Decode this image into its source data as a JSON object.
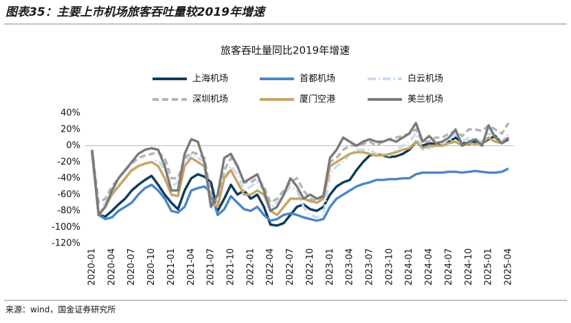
{
  "header": {
    "title": "图表35：主要上市机场旅客吞吐量较2019年增速"
  },
  "chart_data": {
    "type": "line",
    "title": "旅客吞吐量同比2019年增速",
    "categories": [
      "2020-01",
      null,
      null,
      "2020-04",
      null,
      null,
      "2020-07",
      null,
      null,
      "2020-10",
      null,
      null,
      "2021-01",
      null,
      null,
      "2021-04",
      null,
      null,
      "2021-07",
      null,
      null,
      "2021-10",
      null,
      null,
      "2022-01",
      null,
      null,
      "2022-04",
      null,
      null,
      "2022-07",
      null,
      null,
      "2022-10",
      null,
      null,
      "2023-01",
      null,
      null,
      "2023-04",
      null,
      null,
      "2023-07",
      null,
      null,
      "2023-10",
      null,
      null,
      "2024-01",
      null,
      null,
      "2024-04",
      null,
      null,
      "2024-07",
      null,
      null,
      "2024-10",
      null,
      null,
      "2025-01",
      null,
      null,
      "2025-04"
    ],
    "ylim": [
      -120,
      40
    ],
    "yticks": [
      {
        "value": -120,
        "label": "-120%"
      },
      {
        "value": -100,
        "label": "-100%"
      },
      {
        "value": -80,
        "label": "-80%"
      },
      {
        "value": -60,
        "label": "-60%"
      },
      {
        "value": -40,
        "label": "-40%"
      },
      {
        "value": -20,
        "label": "-20%"
      },
      {
        "value": 0,
        "label": "0%"
      },
      {
        "value": 20,
        "label": "20%"
      },
      {
        "value": 40,
        "label": "40%"
      }
    ],
    "series": [
      {
        "name": "上海机场",
        "color": "#0b3d5c",
        "dash": "solid",
        "values": [
          -8,
          -85,
          -87,
          -80,
          -72,
          -65,
          -55,
          -48,
          -42,
          -37,
          -48,
          -60,
          -70,
          -78,
          -55,
          -40,
          -35,
          -38,
          -45,
          -80,
          -65,
          -48,
          -60,
          -55,
          -65,
          -60,
          -75,
          -97,
          -98,
          -95,
          -85,
          -75,
          -72,
          -78,
          -80,
          -75,
          -60,
          -50,
          -45,
          -42,
          -30,
          -20,
          -12,
          -10,
          -12,
          -14,
          -13,
          -10,
          -5,
          5,
          0,
          3,
          2,
          0,
          5,
          10,
          4,
          2,
          5,
          3,
          8,
          12,
          3,
          8
        ]
      },
      {
        "name": "首都机场",
        "color": "#4a86c8",
        "dash": "solid",
        "values": [
          -8,
          -85,
          -90,
          -88,
          -80,
          -75,
          -70,
          -60,
          -52,
          -48,
          -55,
          -65,
          -80,
          -82,
          -75,
          -55,
          -52,
          -50,
          -58,
          -85,
          -78,
          -62,
          -70,
          -78,
          -80,
          -75,
          -85,
          -92,
          -90,
          -85,
          -83,
          -85,
          -88,
          -90,
          -92,
          -90,
          -75,
          -65,
          -60,
          -55,
          -50,
          -47,
          -45,
          -42,
          -42,
          -41,
          -41,
          -40,
          -40,
          -35,
          -33,
          -33,
          -33,
          -33,
          -32,
          -32,
          -33,
          -32,
          -31,
          -32,
          -33,
          -33,
          -32,
          -28
        ]
      },
      {
        "name": "白云机场",
        "color": "#c9dcf0",
        "dash": "dashdot",
        "values": [
          -5,
          -85,
          -70,
          -60,
          -48,
          -40,
          -32,
          -25,
          -22,
          -20,
          -18,
          -30,
          -50,
          -45,
          -20,
          -10,
          -15,
          -20,
          -78,
          -70,
          -40,
          -25,
          -35,
          -55,
          -50,
          -45,
          -55,
          -75,
          -70,
          -60,
          -50,
          -55,
          -75,
          -85,
          -88,
          -85,
          -35,
          -25,
          -20,
          -10,
          -5,
          -5,
          -5,
          -10,
          -10,
          -12,
          -5,
          0,
          5,
          15,
          -5,
          -3,
          0,
          2,
          3,
          15,
          5,
          10,
          8,
          5,
          15,
          12,
          5,
          15
        ]
      },
      {
        "name": "深圳机场",
        "color": "#b4b4b4",
        "dash": "dashed",
        "values": [
          -5,
          -70,
          -65,
          -50,
          -40,
          -30,
          -22,
          -15,
          -12,
          -10,
          -8,
          -15,
          -40,
          -40,
          -15,
          -8,
          -10,
          -15,
          -60,
          -70,
          -30,
          -15,
          -25,
          -45,
          -45,
          -40,
          -50,
          -70,
          -65,
          -55,
          -45,
          -40,
          -55,
          -65,
          -68,
          -60,
          -20,
          -15,
          -5,
          0,
          0,
          2,
          5,
          0,
          5,
          8,
          10,
          12,
          15,
          20,
          5,
          5,
          10,
          10,
          15,
          18,
          12,
          20,
          20,
          18,
          25,
          20,
          15,
          28
        ]
      },
      {
        "name": "厦门空港",
        "color": "#c8a464",
        "dash": "solid",
        "values": [
          -8,
          -85,
          -75,
          -60,
          -50,
          -40,
          -30,
          -25,
          -22,
          -20,
          -25,
          -40,
          -60,
          -62,
          -25,
          -15,
          -20,
          -25,
          -70,
          -75,
          -40,
          -30,
          -45,
          -60,
          -60,
          -55,
          -60,
          -80,
          -85,
          -75,
          -65,
          -65,
          -65,
          -68,
          -70,
          -65,
          -25,
          -20,
          -15,
          -10,
          -8,
          -8,
          -10,
          -12,
          -12,
          -10,
          -8,
          -5,
          -3,
          5,
          -3,
          0,
          0,
          0,
          3,
          5,
          0,
          3,
          2,
          3,
          10,
          5,
          3,
          10
        ]
      },
      {
        "name": "美兰机场",
        "color": "#7a7a7a",
        "dash": "solid",
        "values": [
          -5,
          -85,
          -75,
          -55,
          -40,
          -30,
          -20,
          -10,
          -5,
          -3,
          -5,
          -25,
          -55,
          -55,
          -10,
          8,
          5,
          -20,
          -75,
          -60,
          -15,
          -10,
          -25,
          -45,
          -40,
          -35,
          -55,
          -80,
          -75,
          -60,
          -40,
          -50,
          -65,
          -60,
          -65,
          -62,
          -15,
          -5,
          10,
          5,
          0,
          5,
          8,
          5,
          5,
          8,
          5,
          10,
          15,
          28,
          5,
          12,
          3,
          5,
          10,
          20,
          0,
          5,
          8,
          0,
          25,
          10,
          3,
          10
        ]
      }
    ]
  },
  "footer": {
    "source": "来源：wind，国金证券研究所"
  }
}
